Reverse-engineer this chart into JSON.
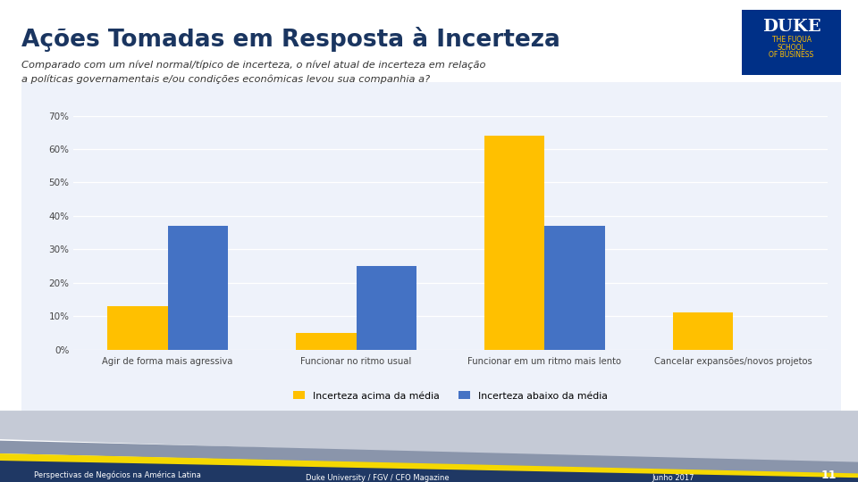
{
  "title": "Ações Tomadas em Resposta à Incerteza",
  "subtitle_line1": "Comparado com um nível normal/típico de incerteza, o nível atual de incerteza em relação",
  "subtitle_line2": "a políticas governamentais e/ou condições econômicas levou sua companhia a?",
  "categories": [
    "Agir de forma mais agressiva",
    "Funcionar no ritmo usual",
    "Funcionar em um ritmo mais lento",
    "Cancelar expansões/novos projetos"
  ],
  "series": [
    {
      "name": "Incerteza acima da média",
      "values": [
        13,
        5,
        64,
        11
      ],
      "color": "#FFC000"
    },
    {
      "name": "Incerteza abaixo da média",
      "values": [
        37,
        25,
        37,
        0
      ],
      "color": "#4472C4"
    }
  ],
  "ylim": [
    0,
    70
  ],
  "yticks": [
    0,
    10,
    20,
    30,
    40,
    50,
    60,
    70
  ],
  "ytick_labels": [
    "0%",
    "10%",
    "20%",
    "30%",
    "40%",
    "50%",
    "60%",
    "70%"
  ],
  "background_color": "#FFFFFF",
  "chart_bg": "#EEF2FA",
  "chart_border": "#5B8BC9",
  "grid_color": "#FFFFFF",
  "footer_bg": "#1F3864",
  "footer_band1_color": "#B0B8CC",
  "footer_band2_color": "#F5D800",
  "footer_text": [
    "Perspectivas de Negócios na América Latina",
    "Duke University / FGV / CFO Magazine",
    "Junho 2017"
  ],
  "page_number": "11",
  "logo_bg": "#003087",
  "logo_text_color": "#FFFFFF",
  "logo_subtext_color": "#FFC000"
}
